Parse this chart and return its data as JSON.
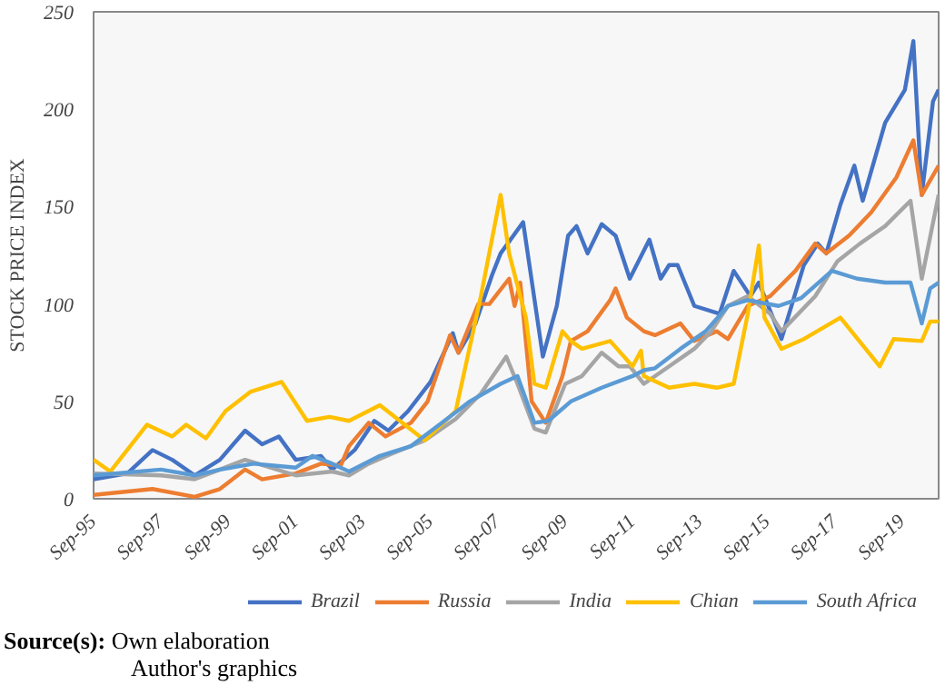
{
  "chart_data": {
    "type": "line",
    "ylabel": "STOCK PRICE INDEX",
    "xlim": [
      "1995-09",
      "2020-10"
    ],
    "ylim": [
      0,
      250
    ],
    "yticks": [
      0,
      50,
      100,
      150,
      200,
      250
    ],
    "xticks": [
      {
        "value": "1995-09",
        "label": "Sep-95"
      },
      {
        "value": "1997-09",
        "label": "Sep-97"
      },
      {
        "value": "1999-09",
        "label": "Sep-99"
      },
      {
        "value": "2001-09",
        "label": "Sep-01"
      },
      {
        "value": "2003-09",
        "label": "Sep-03"
      },
      {
        "value": "2005-09",
        "label": "Sep-05"
      },
      {
        "value": "2007-09",
        "label": "Sep-07"
      },
      {
        "value": "2009-09",
        "label": "Sep-09"
      },
      {
        "value": "2011-09",
        "label": "Sep-11"
      },
      {
        "value": "2013-09",
        "label": "Sep-13"
      },
      {
        "value": "2015-09",
        "label": "Sep-15"
      },
      {
        "value": "2017-09",
        "label": "Sep-17"
      },
      {
        "value": "2019-09",
        "label": "Sep-19"
      }
    ],
    "grid": false,
    "legend": "bottom",
    "line_style": "solid",
    "annotations": [
      "Source(s): Own elaboration",
      "Author's graphics"
    ],
    "series": [
      {
        "name": "Brazil",
        "color": "#4472c4",
        "x": [
          "1995-09",
          "1996-09",
          "1997-06",
          "1998-01",
          "1998-09",
          "1999-06",
          "2000-03",
          "2000-09",
          "2001-03",
          "2001-09",
          "2002-06",
          "2002-10",
          "2003-06",
          "2004-01",
          "2004-06",
          "2005-01",
          "2005-09",
          "2006-05",
          "2006-07",
          "2007-01",
          "2007-07",
          "2007-10",
          "2008-06",
          "2009-01",
          "2009-06",
          "2009-10",
          "2010-01",
          "2010-05",
          "2010-10",
          "2011-03",
          "2011-08",
          "2012-03",
          "2012-07",
          "2012-10",
          "2013-01",
          "2013-07",
          "2014-04",
          "2014-09",
          "2015-03",
          "2015-06",
          "2016-02",
          "2016-10",
          "2017-03",
          "2017-06",
          "2017-11",
          "2018-04",
          "2018-07",
          "2019-03",
          "2019-10",
          "2020-01",
          "2020-04",
          "2020-08",
          "2020-10"
        ],
        "values": [
          10,
          13,
          25,
          20,
          12,
          20,
          35,
          28,
          32,
          20,
          22,
          15,
          25,
          40,
          35,
          45,
          60,
          85,
          75,
          90,
          115,
          126,
          142,
          73,
          99,
          135,
          140,
          126,
          141,
          135,
          113,
          133,
          113,
          120,
          120,
          99,
          95,
          117,
          104,
          111,
          82,
          120,
          131,
          126,
          151,
          171,
          153,
          193,
          210,
          235,
          156,
          204,
          210
        ]
      },
      {
        "name": "Russia",
        "color": "#ed7d31",
        "x": [
          "1995-09",
          "1997-06",
          "1998-09",
          "1999-06",
          "2000-03",
          "2000-09",
          "2001-09",
          "2002-06",
          "2003-01",
          "2003-04",
          "2003-11",
          "2004-05",
          "2005-02",
          "2005-08",
          "2006-04",
          "2006-07",
          "2007-02",
          "2007-06",
          "2008-01",
          "2008-03",
          "2008-05",
          "2008-09",
          "2009-02",
          "2009-08",
          "2009-11",
          "2010-05",
          "2011-01",
          "2011-03",
          "2011-07",
          "2012-01",
          "2012-05",
          "2013-02",
          "2013-07",
          "2014-03",
          "2014-07",
          "2015-02",
          "2015-10",
          "2016-07",
          "2017-02",
          "2017-06",
          "2018-02",
          "2018-10",
          "2019-07",
          "2020-01",
          "2020-04",
          "2020-10"
        ],
        "values": [
          2,
          5,
          1,
          5,
          15,
          10,
          13,
          18,
          17,
          27,
          39,
          32,
          39,
          50,
          84,
          75,
          100,
          100,
          113,
          99,
          111,
          50,
          39,
          63,
          81,
          86,
          102,
          108,
          93,
          86,
          84,
          90,
          81,
          86,
          82,
          99,
          104,
          117,
          131,
          126,
          135,
          147,
          165,
          184,
          156,
          171
        ]
      },
      {
        "name": "India",
        "color": "#a5a5a5",
        "x": [
          "1995-09",
          "1997-09",
          "1998-09",
          "1999-06",
          "2000-03",
          "2001-09",
          "2002-10",
          "2003-04",
          "2003-11",
          "2004-07",
          "2005-07",
          "2006-06",
          "2007-03",
          "2007-12",
          "2008-04",
          "2008-10",
          "2009-02",
          "2009-09",
          "2010-03",
          "2010-10",
          "2011-04",
          "2011-08",
          "2012-01",
          "2012-10",
          "2013-07",
          "2014-01",
          "2014-07",
          "2015-02",
          "2015-10",
          "2016-02",
          "2017-02",
          "2017-10",
          "2018-06",
          "2019-03",
          "2019-12",
          "2020-04",
          "2020-10"
        ],
        "values": [
          13,
          12,
          10,
          15,
          20,
          12,
          14,
          12,
          18,
          23,
          30,
          41,
          54,
          73,
          59,
          36,
          34,
          59,
          63,
          75,
          68,
          68,
          59,
          68,
          77,
          86,
          99,
          104,
          95,
          86,
          104,
          122,
          131,
          140,
          153,
          113,
          156
        ]
      },
      {
        "name": "Chian",
        "color": "#ffc000",
        "x": [
          "1995-09",
          "1996-03",
          "1997-04",
          "1998-01",
          "1998-06",
          "1999-01",
          "1999-08",
          "2000-05",
          "2001-04",
          "2002-01",
          "2002-09",
          "2003-04",
          "2004-03",
          "2005-07",
          "2006-06",
          "2007-03",
          "2007-10",
          "2008-01",
          "2008-07",
          "2008-10",
          "2009-02",
          "2009-08",
          "2009-11",
          "2010-03",
          "2011-01",
          "2011-09",
          "2011-12",
          "2012-01",
          "2012-10",
          "2013-07",
          "2014-03",
          "2014-09",
          "2015-02",
          "2015-06",
          "2015-08",
          "2016-02",
          "2016-10",
          "2017-11",
          "2019-01",
          "2019-06",
          "2020-04",
          "2020-07",
          "2020-10"
        ],
        "values": [
          20,
          14,
          38,
          32,
          38,
          31,
          45,
          55,
          60,
          40,
          42,
          40,
          48,
          30,
          45,
          104,
          156,
          126,
          93,
          59,
          57,
          86,
          81,
          77,
          81,
          68,
          76,
          63,
          57,
          59,
          57,
          59,
          95,
          130,
          93,
          77,
          82,
          93,
          68,
          82,
          81,
          91,
          91
        ]
      },
      {
        "name": "South Africa",
        "color": "#5b9bd5",
        "x": [
          "1995-09",
          "1997-09",
          "1998-09",
          "1999-06",
          "2000-06",
          "2001-09",
          "2002-03",
          "2002-10",
          "2003-04",
          "2004-03",
          "2005-02",
          "2006-01",
          "2006-11",
          "2007-10",
          "2008-04",
          "2008-10",
          "2009-03",
          "2009-11",
          "2010-10",
          "2011-09",
          "2012-01",
          "2012-05",
          "2013-02",
          "2013-11",
          "2014-07",
          "2015-02",
          "2016-01",
          "2016-09",
          "2017-08",
          "2018-05",
          "2019-03",
          "2019-12",
          "2020-04",
          "2020-07",
          "2020-10"
        ],
        "values": [
          12,
          15,
          12,
          15,
          18,
          16,
          22,
          18,
          14,
          22,
          27,
          39,
          50,
          59,
          63,
          39,
          40,
          50,
          57,
          63,
          66,
          67,
          77,
          86,
          99,
          102,
          99,
          103,
          117,
          113,
          111,
          111,
          90,
          108,
          111
        ]
      }
    ]
  }
}
